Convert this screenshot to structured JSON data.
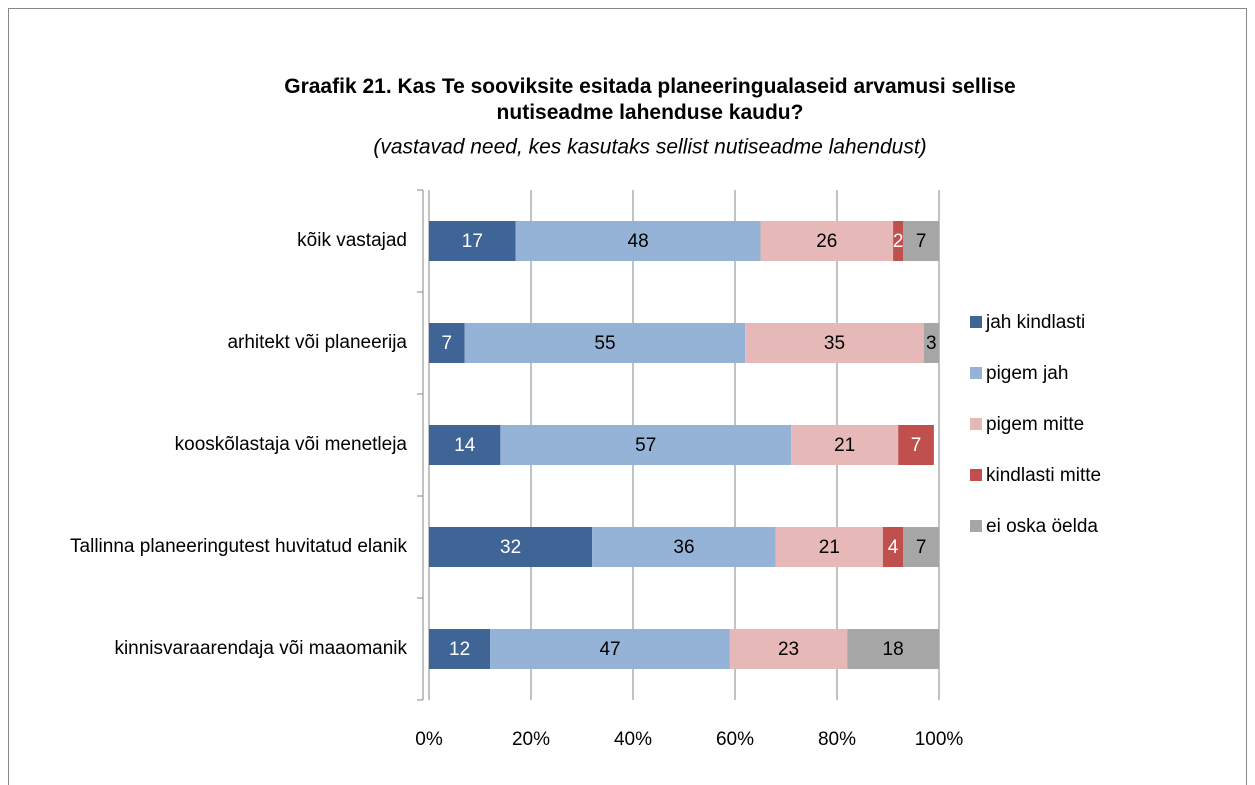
{
  "chart_data": {
    "type": "stacked-bar-horizontal",
    "title": "Graafik 21.  Kas Te sooviksite esitada planeeringualaseid arvamusi sellise nutiseadme lahenduse kaudu?",
    "subtitle": "(vastavad need, kes kasutaks sellist nutiseadme lahendust)",
    "categories": [
      "kõik vastajad",
      "arhitekt või planeerija",
      "kooskõlastaja või menetleja",
      "Tallinna planeeringutest huvitatud elanik",
      "kinnisvaraarendaja või maaomanik"
    ],
    "series": [
      {
        "name": "jah kindlasti",
        "color": "#3f6496",
        "label_color": "#ffffff",
        "values": [
          17,
          7,
          14,
          32,
          12
        ]
      },
      {
        "name": "pigem jah",
        "color": "#95b3d7",
        "label_color": "#000000",
        "values": [
          48,
          55,
          57,
          36,
          47
        ]
      },
      {
        "name": "pigem mitte",
        "color": "#e6b9b8",
        "label_color": "#000000",
        "values": [
          26,
          35,
          21,
          21,
          23
        ]
      },
      {
        "name": "kindlasti mitte",
        "color": "#c0504d",
        "label_color": "#ffffff",
        "values": [
          2,
          null,
          7,
          4,
          null
        ]
      },
      {
        "name": "ei oska öelda",
        "color": "#a6a6a6",
        "label_color": "#000000",
        "values": [
          7,
          3,
          null,
          7,
          18
        ]
      }
    ],
    "xlim": [
      0,
      100
    ],
    "xticks": [
      {
        "value": 0,
        "label": "0%"
      },
      {
        "value": 20,
        "label": "20%"
      },
      {
        "value": 40,
        "label": "40%"
      },
      {
        "value": 60,
        "label": "60%"
      },
      {
        "value": 80,
        "label": "80%"
      },
      {
        "value": 100,
        "label": "100%"
      }
    ],
    "grid": true,
    "legend": "right"
  }
}
